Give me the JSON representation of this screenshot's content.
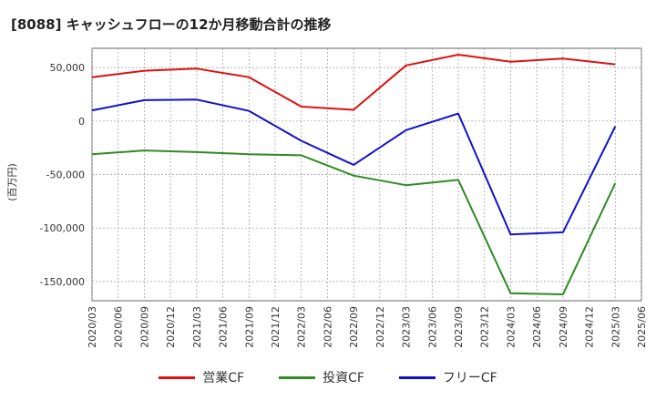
{
  "chart_data": {
    "type": "line",
    "title": "[8088]  キャッシュフローの12か月移動合計の推移",
    "xlabel": "",
    "ylabel": "(百万円)",
    "categories": [
      "2020/03",
      "2020/06",
      "2020/09",
      "2020/12",
      "2021/03",
      "2021/06",
      "2021/09",
      "2021/12",
      "2022/03",
      "2022/06",
      "2022/09",
      "2022/12",
      "2023/03",
      "2023/06",
      "2023/09",
      "2023/12",
      "2024/03",
      "2024/06",
      "2024/09",
      "2024/12",
      "2025/03",
      "2025/06"
    ],
    "yticks": [
      50000,
      0,
      -50000,
      -100000,
      -150000
    ],
    "ytick_labels": [
      "50,000",
      "0",
      "-50,000",
      "-100,000",
      "-150,000"
    ],
    "ylim": [
      -168000,
      68000
    ],
    "grid": true,
    "legend_position": "bottom",
    "series": [
      {
        "name": "営業CF",
        "color": "#dd1111",
        "values": [
          41000,
          null,
          47000,
          null,
          49000,
          null,
          41000,
          null,
          13500,
          null,
          10500,
          null,
          52000,
          null,
          62000,
          null,
          55500,
          null,
          58500,
          null,
          53000,
          null
        ]
      },
      {
        "name": "投資CF",
        "color": "#2e8b22",
        "values": [
          -31000,
          null,
          -27500,
          null,
          -29000,
          null,
          -31000,
          null,
          -32000,
          null,
          -51000,
          null,
          -60000,
          null,
          -55000,
          null,
          -161000,
          null,
          -162000,
          null,
          -58000,
          null
        ]
      },
      {
        "name": "フリーCF",
        "color": "#1111cc",
        "values": [
          10000,
          null,
          19500,
          null,
          20000,
          null,
          9500,
          null,
          -18500,
          null,
          -41000,
          null,
          -8500,
          null,
          7000,
          null,
          -106000,
          null,
          -104000,
          null,
          -5000,
          null
        ]
      }
    ]
  }
}
